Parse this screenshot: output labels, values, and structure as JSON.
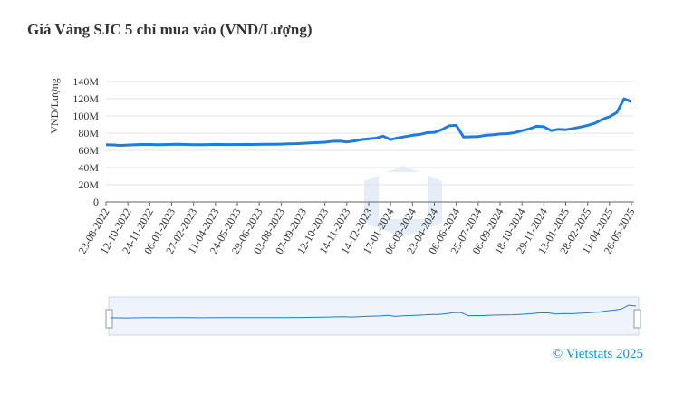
{
  "chart_data": {
    "type": "line",
    "title": "Giá Vàng SJC 5 chỉ mua vào (VND/Lượng)",
    "y_label": "VND/Lượng",
    "credit": "© Vietstats 2025",
    "categories": [
      "23-08-2022",
      null,
      null,
      "12-10-2022",
      null,
      null,
      "24-11-2022",
      null,
      null,
      "06-01-2023",
      null,
      null,
      "27-02-2023",
      null,
      null,
      "11-04-2023",
      null,
      null,
      "24-05-2023",
      null,
      null,
      "29-06-2023",
      null,
      null,
      "03-08-2023",
      null,
      null,
      "07-09-2023",
      null,
      null,
      "12-10-2023",
      null,
      null,
      "14-11-2023",
      null,
      null,
      "14-12-2023",
      null,
      null,
      "17-01-2024",
      null,
      null,
      "06-03-2024",
      null,
      null,
      "23-04-2024",
      null,
      null,
      "06-06-2024",
      null,
      null,
      "25-07-2024",
      null,
      null,
      "06-09-2024",
      null,
      null,
      "18-10-2024",
      null,
      null,
      "29-11-2024",
      null,
      null,
      "13-01-2025",
      null,
      null,
      "28-02-2025",
      null,
      null,
      "11-04-2025",
      null,
      null,
      "26-05-2025"
    ],
    "series": [
      {
        "name": "Giá Vàng SJC",
        "color": "#1e7be0",
        "values": [
          66500000,
          66300000,
          65800000,
          66200000,
          66500000,
          66800000,
          66800000,
          66600000,
          66700000,
          66900000,
          67000000,
          66800000,
          66600000,
          66500000,
          66700000,
          66900000,
          66800000,
          66700000,
          66800000,
          66900000,
          66800000,
          66900000,
          67000000,
          67100000,
          67300000,
          67600000,
          67800000,
          68200000,
          68600000,
          69000000,
          69500000,
          70500000,
          70800000,
          69800000,
          71000000,
          72500000,
          73500000,
          74200000,
          76500000,
          72500000,
          74500000,
          76000000,
          77500000,
          78500000,
          80500000,
          81000000,
          84000000,
          88500000,
          89000000,
          75500000,
          75800000,
          76000000,
          77500000,
          78000000,
          79000000,
          79500000,
          80500000,
          83000000,
          85000000,
          88000000,
          87500000,
          83000000,
          84500000,
          84000000,
          85500000,
          87000000,
          89000000,
          91500000,
          96000000,
          99000000,
          104000000,
          120000000,
          116500000
        ]
      }
    ],
    "ylim": [
      0,
      140000000
    ],
    "yticks": [
      {
        "value": 0,
        "label": "0"
      },
      {
        "value": 20000000,
        "label": "20M"
      },
      {
        "value": 40000000,
        "label": "40M"
      },
      {
        "value": 60000000,
        "label": "60M"
      },
      {
        "value": 80000000,
        "label": "80M"
      },
      {
        "value": 100000000,
        "label": "100M"
      },
      {
        "value": 120000000,
        "label": "120M"
      },
      {
        "value": 140000000,
        "label": "140M"
      }
    ],
    "grid": true
  }
}
